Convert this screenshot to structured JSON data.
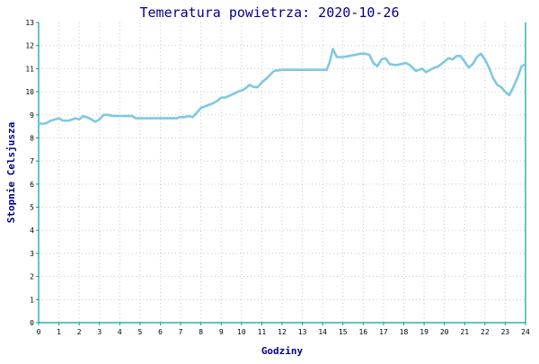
{
  "chart_data": {
    "type": "line",
    "title": "Temeratura powietrza: 2020-10-26",
    "xlabel": "Godziny",
    "ylabel": "Stopnie Celsjusza",
    "xlim": [
      0,
      24
    ],
    "ylim": [
      0,
      13
    ],
    "x_ticks": [
      "0",
      "1",
      "2",
      "3",
      "4",
      "5",
      "6",
      "7",
      "8",
      "9",
      "10",
      "11",
      "12",
      "13",
      "14",
      "15",
      "16",
      "17",
      "18",
      "19",
      "20",
      "21",
      "22",
      "23",
      "24"
    ],
    "y_ticks": [
      "0",
      "1",
      "2",
      "3",
      "4",
      "5",
      "6",
      "7",
      "8",
      "9",
      "10",
      "11",
      "12",
      "13"
    ],
    "grid": true,
    "colors": {
      "line": "#7ec8e3",
      "axis": "#00a0a0",
      "grid": "#c8c8c8",
      "text": "#00008b"
    },
    "series": [
      {
        "x": [
          0,
          0.2,
          0.4,
          0.6,
          0.8,
          1.0,
          1.2,
          1.5,
          1.8,
          2.0,
          2.2,
          2.5,
          2.8,
          3.0,
          3.2,
          3.4,
          3.7,
          4.0,
          4.3,
          4.6,
          4.8,
          5.0,
          5.3,
          5.6,
          6.0,
          6.4,
          6.8,
          7.0,
          7.2,
          7.4,
          7.6,
          8.0,
          8.3,
          8.6,
          8.8,
          9.0,
          9.2,
          9.6,
          9.8,
          10.0,
          10.2,
          10.4,
          10.6,
          10.8,
          11.0,
          11.2,
          11.6,
          12.0,
          12.5,
          13.0,
          13.5,
          14.0,
          14.2,
          14.35,
          14.5,
          14.7,
          15.0,
          15.3,
          15.6,
          15.9,
          16.1,
          16.3,
          16.5,
          16.7,
          16.9,
          17.1,
          17.3,
          17.6,
          17.9,
          18.1,
          18.3,
          18.6,
          18.9,
          19.1,
          19.4,
          19.7,
          20.0,
          20.2,
          20.4,
          20.6,
          20.8,
          21.0,
          21.2,
          21.4,
          21.6,
          21.8,
          22.0,
          22.2,
          22.4,
          22.6,
          22.8,
          23.0,
          23.2,
          23.4,
          23.6,
          23.8,
          24.0
        ],
        "y": [
          8.65,
          8.6,
          8.65,
          8.75,
          8.8,
          8.85,
          8.75,
          8.75,
          8.85,
          8.8,
          8.95,
          8.85,
          8.7,
          8.8,
          9.0,
          9.0,
          8.95,
          8.95,
          8.95,
          8.95,
          8.85,
          8.85,
          8.85,
          8.85,
          8.85,
          8.85,
          8.85,
          8.9,
          8.9,
          8.95,
          8.9,
          9.3,
          9.4,
          9.5,
          9.6,
          9.75,
          9.75,
          9.9,
          10.0,
          10.05,
          10.15,
          10.3,
          10.2,
          10.2,
          10.4,
          10.55,
          10.9,
          10.95,
          10.95,
          10.95,
          10.95,
          10.95,
          10.95,
          11.3,
          11.85,
          11.5,
          11.5,
          11.55,
          11.6,
          11.65,
          11.65,
          11.6,
          11.25,
          11.1,
          11.4,
          11.45,
          11.2,
          11.15,
          11.2,
          11.25,
          11.15,
          10.9,
          11.0,
          10.85,
          11.0,
          11.1,
          11.3,
          11.45,
          11.4,
          11.55,
          11.55,
          11.3,
          11.05,
          11.2,
          11.5,
          11.65,
          11.4,
          11.05,
          10.6,
          10.3,
          10.2,
          10.0,
          9.85,
          10.2,
          10.6,
          11.1,
          11.2
        ]
      }
    ]
  }
}
